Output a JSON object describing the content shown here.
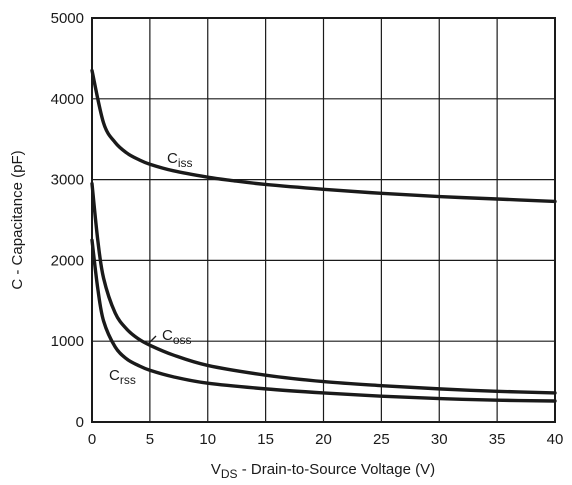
{
  "chart_data": {
    "type": "line",
    "title": "",
    "xlabel": {
      "main": "V",
      "sub": "DS",
      "rest": " - Drain-to-Source Voltage (V)"
    },
    "ylabel": "C - Capacitance (pF)",
    "xlim": [
      0,
      40
    ],
    "ylim": [
      0,
      5000
    ],
    "x_ticks": [
      "0",
      "5",
      "10",
      "15",
      "20",
      "25",
      "30",
      "35",
      "40"
    ],
    "y_ticks": [
      "0",
      "1000",
      "2000",
      "3000",
      "4000",
      "5000"
    ],
    "grid": true,
    "legend": "none",
    "series": [
      {
        "name": {
          "main": "C",
          "sub": "iss"
        },
        "x": [
          0,
          1,
          2,
          3,
          4,
          5,
          7,
          10,
          12,
          15,
          20,
          25,
          30,
          35,
          40
        ],
        "y": [
          4350,
          3700,
          3460,
          3330,
          3250,
          3190,
          3110,
          3030,
          2990,
          2940,
          2880,
          2830,
          2790,
          2760,
          2730
        ]
      },
      {
        "name": {
          "main": "C",
          "sub": "oss"
        },
        "x": [
          0,
          0.5,
          1,
          2,
          3,
          4,
          5,
          7,
          10,
          15,
          20,
          25,
          30,
          35,
          40
        ],
        "y": [
          2950,
          2250,
          1780,
          1350,
          1150,
          1030,
          950,
          830,
          700,
          580,
          500,
          450,
          410,
          380,
          360
        ]
      },
      {
        "name": {
          "main": "C",
          "sub": "rss"
        },
        "x": [
          0,
          0.5,
          1,
          2,
          3,
          4,
          5,
          7,
          10,
          15,
          20,
          25,
          30,
          35,
          40
        ],
        "y": [
          2250,
          1650,
          1250,
          930,
          780,
          700,
          640,
          560,
          480,
          410,
          360,
          320,
          290,
          270,
          260
        ]
      }
    ]
  }
}
